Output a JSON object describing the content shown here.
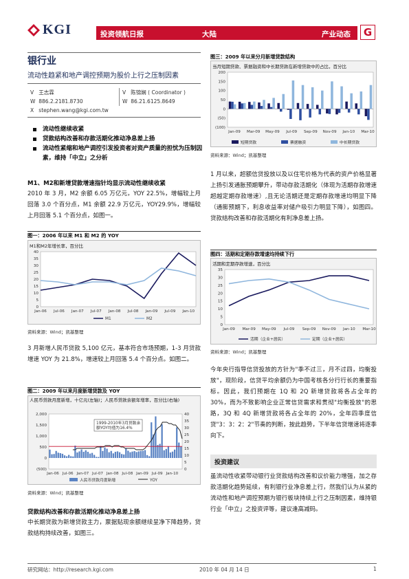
{
  "header": {
    "brand": "KGI",
    "bar_left": "投资领航日报",
    "bar_mid": "大陆",
    "bar_right": "产业动态",
    "corner": "G"
  },
  "title": {
    "main": "银行业",
    "sub": "流动性趋紧和地产调控预期为股价上行之压制因素"
  },
  "authors": {
    "left": {
      "v": "V",
      "name": "王志霖",
      "w_label": "W",
      "phone": "886.2.2181.8730",
      "x_label": "X",
      "email": "stephen.wang@kgi.com.tw"
    },
    "right": {
      "v": "V",
      "name": "陈锦娴 ( Coordinator )",
      "w_label": "W",
      "phone": "86.21.6125.8649"
    }
  },
  "bullets": [
    "流动性继续收紧",
    "贷款结构改善和存款活期化推动净息差上扬",
    "流动性紧缩和地产调控引发投资者对资产质量的担忧为压制因素，维持「中立」之分析"
  ],
  "sec1": {
    "heading": "M1、M2和新增贷款增速指针均显示流动性继续收紧",
    "para": "2010 年 3 月，M2 余额 6.05 万亿元，YOY 22.5%，增幅较上月回落 3.0 个百分点，M1 余额 22.9 万亿元，YOY29.9%，增幅较上月回落 5.1 个百分点，如图一。"
  },
  "fig1": {
    "title": "图一：2006 年以来 M1 和 M2 的 YOY",
    "subtitle": "M1和M2年增长率，百分比",
    "source": "资料来源：Wind；凯基整理",
    "legend": [
      "M1",
      "M2"
    ]
  },
  "sec2": {
    "para": "3 月新增人民币贷款 5,100 亿元，基本符合市场预期，1-3 月贷款增速 YOY 为 21.8%，增速较上月回落 5.4 个百分点。如图二。"
  },
  "fig2": {
    "title": "图二：2009 年以来月度新增贷款及 YOY",
    "subtitle": "人民币贷款月度新增，十亿元(左轴)；人民币贷款余额年增率，百分比(右轴)",
    "annotation": "1999-2010年3月贷款余额YOY均值为16.4%",
    "source": "资料来源：Wind；凯基整理",
    "legend": [
      "人民币贷款月度新增",
      "YOY"
    ]
  },
  "sec3": {
    "heading": "贷款结构改善和存款活期化推动净息差上扬",
    "para": "中长期贷款为新增贷款主力，票据贴现余额继续呈净下降趋势，贷款结构持续改善，如图三。"
  },
  "fig3": {
    "title": "图三：2009 年以来分月新增贷款结构",
    "subtitle": "当月短期贷款、票据融资和中长期贷款在新增贷款中的占比，百分比",
    "source": "资料来源：Wind；凯基整理",
    "legend": [
      "短期贷款",
      "票据融资",
      "中长期贷款"
    ]
  },
  "sec4": {
    "para": "1 月以来，超额信贷投放以及以住宅价格为代表的资产价格显著上扬引发通胀预期攀升，带动存款活期化（体现为活期存款增速超越定期存款增速）,且无论活期还是定期存款增速均明显下降（通膨预期下，利息收益率对储户吸引力明显下降），如图四。贷款结构改善和存款活期化有利净息差上扬。"
  },
  "fig4": {
    "title": "图四：活期和定期存款增速均持续下行",
    "subtitle": "活期和定期存款增速，百分比",
    "source": "资料来源：Wind；凯基整理",
    "legend": [
      "活期（企业+居民）",
      "定期（企业+居民）"
    ]
  },
  "sec5": {
    "para": "今年央行指导信贷投放的方针为\"季不过三，月不过四，均衡投放\"，现阶段，信贷平均余额仍为中国考核各分行行长的重要指标。因此，我们预期在 1Q 和 2Q 新增贷款将各占全年的 30%，而为不致影响企业正常信贷需求和贯彻\"均衡投放\"的思路，3Q 和 4Q 新增贷款将各占全年的 20%，全年四季度信贷\"3：3：2：2\"节奏的判断，按此趋势，下半年信贷增速将逐季向下。"
  },
  "invest": {
    "heading": "投资建议",
    "para": "虽流动性收紧带动银行业贷款结构改善和议价能力增强，加之存款活期化趋势延续，有利银行业净息差上行，然我们认为从紧的流动性和地产调控预期为银行板块持续上行之压制因素，维持银行业「中立」之投资评等，建议逢高减码。"
  },
  "footer": {
    "left": "研究网站：http://research.kgi.com",
    "mid": "2010 年 04 月 14 日",
    "page": "1"
  },
  "chart_data": [
    {
      "type": "line",
      "title": "图一：2006 年以来 M1 和 M2 的 YOY",
      "subtitle": "M1和M2年增长率，百分比",
      "x": [
        "Jan-06",
        "Jul-06",
        "Jan-07",
        "Jul-07",
        "Jan-08",
        "Jul-08",
        "Jan-09",
        "Jul-09",
        "Jan-10",
        "Mar-10"
      ],
      "x_ticks": [
        "Jan-06",
        "Jul-06",
        "Jan-07",
        "Jul-07",
        "Jan-08",
        "Jul-08",
        "Jan-09",
        "Jul-09",
        "Jan-10"
      ],
      "ylim": [
        0,
        40
      ],
      "y_ticks": [
        0,
        5,
        10,
        15,
        20,
        25,
        30,
        35,
        40
      ],
      "series": [
        {
          "name": "M1",
          "values": [
            12,
            14,
            16,
            20,
            19,
            15,
            6,
            24,
            39,
            30
          ]
        },
        {
          "name": "M2",
          "values": [
            19,
            18,
            16,
            18,
            18,
            16,
            19,
            28,
            26,
            22.5
          ]
        }
      ],
      "legend": "bottom"
    },
    {
      "type": "bar",
      "title": "图二：2009 年以来月度新增贷款及 YOY",
      "x_ticks": [
        "Jan-06",
        "Jul-06",
        "Jan-07",
        "Jul-07",
        "Jan-08",
        "Jul-08",
        "Jan-09",
        "Jul-09",
        "Jan-10"
      ],
      "ylim_left": [
        -500,
        2000
      ],
      "y_ticks_left": [
        "(500)",
        "0",
        "500",
        "1,000",
        "1,500",
        "2,000"
      ],
      "ylim_right": [
        0,
        40
      ],
      "y_ticks_right": [
        0,
        5,
        10,
        15,
        20,
        25,
        30,
        35,
        40
      ],
      "series": [
        {
          "name": "人民币贷款月度新增",
          "axis": "left",
          "values": [
            380,
            170,
            180,
            320,
            240,
            220,
            190,
            120,
            80,
            140,
            80,
            70,
            560,
            250,
            300,
            390,
            280,
            350,
            280,
            200,
            230,
            140,
            50,
            45,
            540,
            320,
            480,
            420,
            260,
            320,
            210,
            280,
            300,
            260,
            180,
            160,
            450,
            330,
            260,
            290,
            310,
            270,
            300,
            320,
            330,
            360,
            130,
            80,
            1620,
            1070,
            1890,
            590,
            640,
            1530,
            350,
            410,
            520,
            250,
            290,
            380,
            1390,
            700,
            510
          ]
        },
        {
          "name": "YOY",
          "axis": "right",
          "values": [
            14,
            14,
            15,
            15,
            15,
            15,
            15,
            15,
            15,
            15,
            15,
            16,
            16,
            16,
            16,
            17,
            17,
            17,
            16,
            17,
            17,
            17,
            16,
            16,
            15,
            15,
            15,
            15,
            15,
            14,
            14,
            14,
            14,
            15,
            17,
            19,
            21,
            24,
            28,
            30,
            31,
            34,
            34,
            34,
            33,
            33,
            32,
            32,
            30,
            28,
            22
          ]
        }
      ],
      "annotation": "1999-2010年3月贷款余额YOY均值为16.4%",
      "reference_line_right": 16.4,
      "legend": "bottom"
    },
    {
      "type": "bar",
      "title": "图三：2009 年以来分月新增贷款结构",
      "x_ticks": [
        "Jan-09",
        "Mar-09",
        "May-09",
        "Jul-09",
        "Sep-09",
        "Nov-09",
        "Jan-10",
        "Mar-10"
      ],
      "ylim": [
        -100,
        200
      ],
      "y_ticks": [
        "(100)",
        "(50)",
        "0",
        "50",
        "100",
        "150",
        "200"
      ],
      "series": [
        {
          "name": "短期贷款",
          "values": [
            40,
            39,
            38,
            35,
            30,
            32,
            -5,
            32,
            27,
            22,
            -25,
            -30,
            40,
            30,
            -40
          ]
        },
        {
          "name": "票据融资",
          "values": [
            39,
            30,
            22,
            16,
            10,
            -15,
            -55,
            -62,
            -47,
            -30,
            -28,
            -22,
            -20,
            -30,
            -60
          ]
        },
        {
          "name": "中长期贷款",
          "values": [
            25,
            32,
            40,
            49,
            60,
            81,
            155,
            130,
            118,
            100,
            150,
            123,
            85,
            95,
            130
          ]
        }
      ],
      "legend": "bottom"
    },
    {
      "type": "line",
      "title": "图四：活期和定期存款增速均持续下行",
      "subtitle": "活期和定期存款增速，百分比",
      "x": [
        "Jan-09",
        "Mar-09",
        "May-09",
        "Jul-09",
        "Sep-09",
        "Nov-09",
        "Jan-10",
        "Mar-10"
      ],
      "ylim": [
        0,
        35
      ],
      "y_ticks": [
        0,
        5,
        10,
        15,
        20,
        25,
        30,
        35
      ],
      "series": [
        {
          "name": "活期（企业+居民）",
          "values": [
            12,
            18,
            22,
            27,
            28,
            31,
            31,
            28
          ]
        },
        {
          "name": "定期（企业+居民）",
          "values": [
            26,
            28,
            29,
            27,
            22,
            16,
            13,
            10
          ]
        }
      ],
      "legend": "bottom"
    }
  ]
}
